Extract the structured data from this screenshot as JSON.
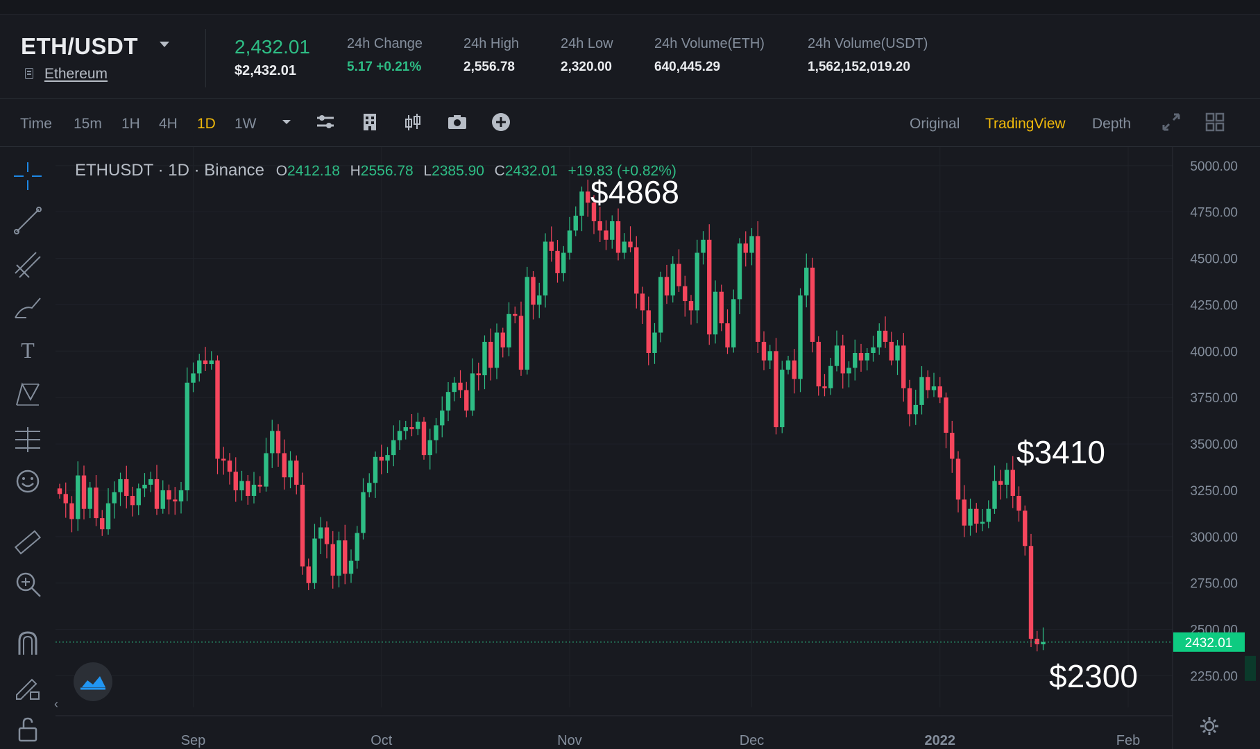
{
  "header": {
    "symbol": "ETH/USDT",
    "coin_name": "Ethereum",
    "last_price": "2,432.01",
    "last_price_usd": "$2,432.01",
    "stats": [
      {
        "label": "24h Change",
        "value": "5.17 +0.21%",
        "positive": true
      },
      {
        "label": "24h High",
        "value": "2,556.78"
      },
      {
        "label": "24h Low",
        "value": "2,320.00"
      },
      {
        "label": "24h Volume(ETH)",
        "value": "640,445.29"
      },
      {
        "label": "24h Volume(USDT)",
        "value": "1,562,152,019.20"
      }
    ]
  },
  "toolbar": {
    "intervals": [
      {
        "label": "Time",
        "active": false
      },
      {
        "label": "15m",
        "active": false
      },
      {
        "label": "1H",
        "active": false
      },
      {
        "label": "4H",
        "active": false
      },
      {
        "label": "1D",
        "active": true
      },
      {
        "label": "1W",
        "active": false
      }
    ],
    "views": [
      {
        "label": "Original",
        "active": false
      },
      {
        "label": "TradingView",
        "active": true
      },
      {
        "label": "Depth",
        "active": false
      }
    ]
  },
  "legend": {
    "ticker": "ETHUSDT",
    "interval": "1D",
    "exchange": "Binance",
    "open": "2412.18",
    "high": "2556.78",
    "low": "2385.90",
    "close": "2432.01",
    "change": "+19.83 (+0.82%)"
  },
  "annotations": [
    "$4868",
    "$3410",
    "$2300"
  ],
  "colors": {
    "up": "#2ebd85",
    "down": "#f6465d",
    "accent": "#f0b90b",
    "bg": "#181a20"
  },
  "chart_data": {
    "type": "candlestick",
    "ylim": [
      2080,
      5100
    ],
    "yticks": [
      "5000.00",
      "4750.00",
      "4500.00",
      "4250.00",
      "4000.00",
      "3750.00",
      "3500.00",
      "3250.00",
      "3000.00",
      "2750.00",
      "2500.00",
      "2250.00"
    ],
    "ytick_values": [
      5000,
      4750,
      4500,
      4250,
      4000,
      3750,
      3500,
      3250,
      3000,
      2750,
      2500,
      2250
    ],
    "xticks": [
      "Sep",
      "Oct",
      "Nov",
      "Dec",
      "2022",
      "Feb"
    ],
    "xtick_days": [
      22,
      53,
      84,
      114,
      145,
      176
    ],
    "current_price_label": "2432.01",
    "current_price": 2432.01,
    "close": [
      3230,
      3180,
      3095,
      3330,
      3150,
      3265,
      3100,
      3040,
      3180,
      3240,
      3310,
      3220,
      3170,
      3260,
      3280,
      3310,
      3150,
      3250,
      3200,
      3190,
      3250,
      3830,
      3880,
      3950,
      3930,
      3950,
      3420,
      3410,
      3350,
      3250,
      3300,
      3220,
      3280,
      3270,
      3450,
      3570,
      3450,
      3320,
      3410,
      3280,
      2840,
      2750,
      2990,
      3050,
      2960,
      2790,
      2980,
      2800,
      2870,
      3020,
      3240,
      3290,
      3430,
      3410,
      3440,
      3520,
      3570,
      3590,
      3580,
      3620,
      3440,
      3520,
      3600,
      3680,
      3780,
      3830,
      3790,
      3680,
      3880,
      3870,
      4050,
      3910,
      4100,
      4020,
      4200,
      4190,
      3900,
      4400,
      4250,
      4300,
      4590,
      4540,
      4420,
      4530,
      4650,
      4730,
      4860,
      4800,
      4700,
      4650,
      4600,
      4700,
      4530,
      4590,
      4560,
      4310,
      4220,
      3990,
      4100,
      4400,
      4300,
      4470,
      4350,
      4270,
      4220,
      4530,
      4600,
      4090,
      4320,
      4150,
      4020,
      4280,
      4580,
      4530,
      4620,
      4050,
      3950,
      4000,
      3590,
      3900,
      3950,
      3850,
      4300,
      4450,
      4050,
      3810,
      3800,
      3920,
      4030,
      3880,
      3910,
      3990,
      3950,
      3990,
      4020,
      4110,
      4050,
      3950,
      4030,
      3800,
      3660,
      3710,
      3860,
      3790,
      3810,
      3750,
      3560,
      3420,
      3200,
      3060,
      3150,
      3070,
      3080,
      3150,
      3300,
      3280,
      3360,
      3220,
      3140,
      2950,
      2450,
      2420,
      2432
    ]
  }
}
